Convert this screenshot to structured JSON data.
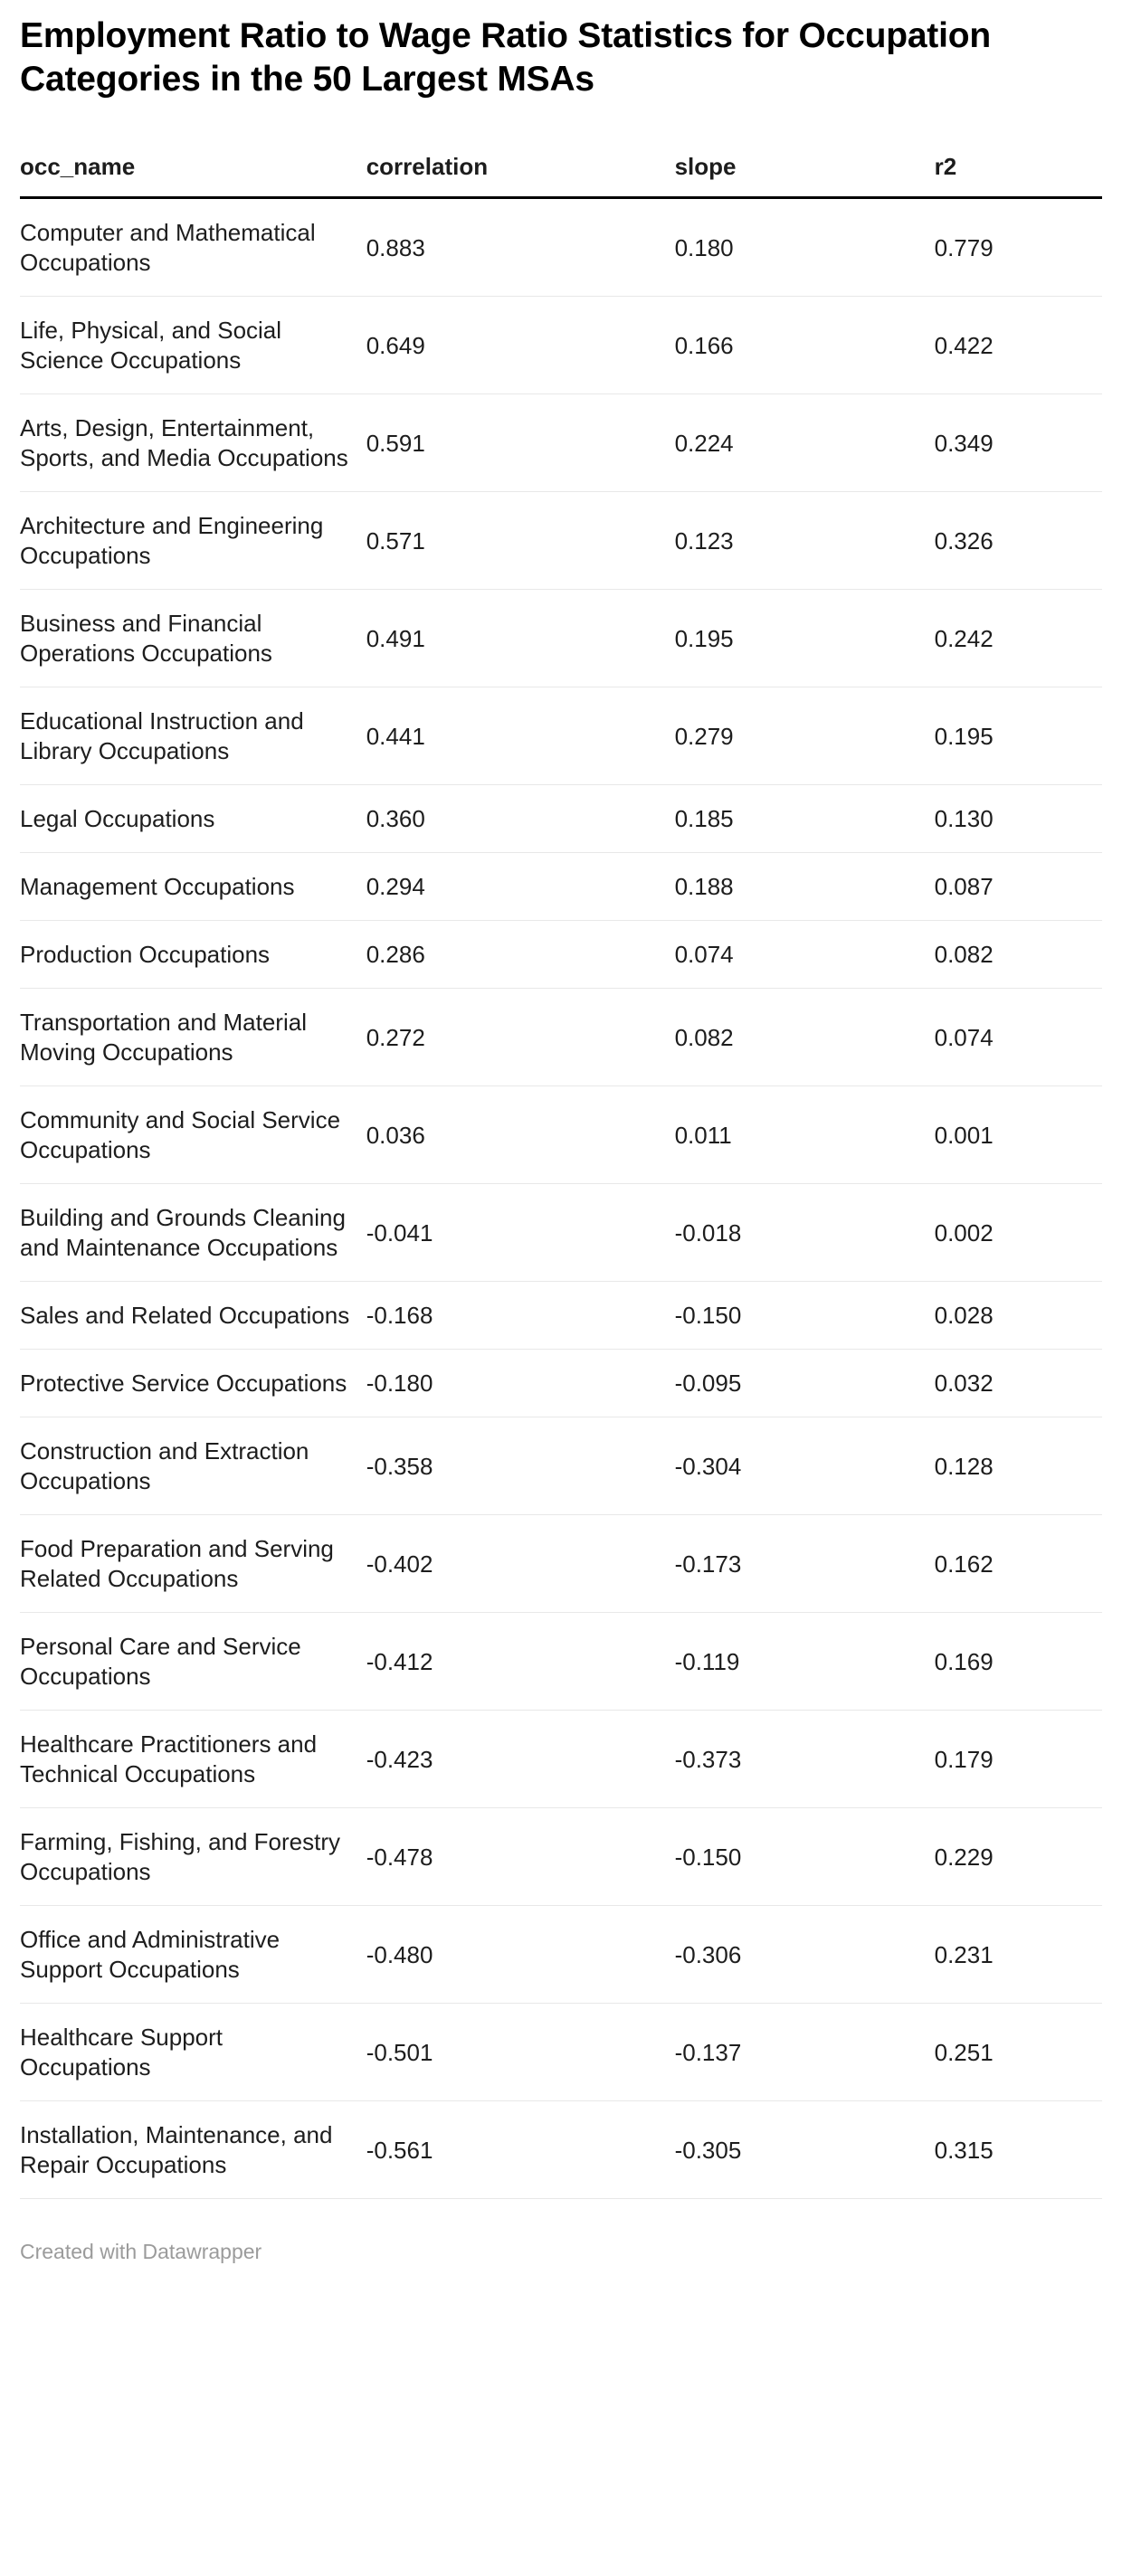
{
  "chart_data": {
    "type": "table",
    "title": "Employment Ratio to Wage Ratio Statistics for Occupation Categories in the 50 Largest MSAs",
    "columns": [
      "occ_name",
      "correlation",
      "slope",
      "r2"
    ],
    "rows": [
      {
        "occ_name": "Computer and Mathematical Occupations",
        "correlation": "0.883",
        "slope": "0.180",
        "r2": "0.779"
      },
      {
        "occ_name": "Life, Physical, and Social Science Occupations",
        "correlation": "0.649",
        "slope": "0.166",
        "r2": "0.422"
      },
      {
        "occ_name": "Arts, Design, Entertainment, Sports, and Media Occupations",
        "correlation": "0.591",
        "slope": "0.224",
        "r2": "0.349"
      },
      {
        "occ_name": "Architecture and Engineering Occupations",
        "correlation": "0.571",
        "slope": "0.123",
        "r2": "0.326"
      },
      {
        "occ_name": "Business and Financial Operations Occupations",
        "correlation": "0.491",
        "slope": "0.195",
        "r2": "0.242"
      },
      {
        "occ_name": "Educational Instruction and Library Occupations",
        "correlation": "0.441",
        "slope": "0.279",
        "r2": "0.195"
      },
      {
        "occ_name": "Legal Occupations",
        "correlation": "0.360",
        "slope": "0.185",
        "r2": "0.130"
      },
      {
        "occ_name": "Management Occupations",
        "correlation": "0.294",
        "slope": "0.188",
        "r2": "0.087"
      },
      {
        "occ_name": "Production Occupations",
        "correlation": "0.286",
        "slope": "0.074",
        "r2": "0.082"
      },
      {
        "occ_name": "Transportation and Material Moving Occupations",
        "correlation": "0.272",
        "slope": "0.082",
        "r2": "0.074"
      },
      {
        "occ_name": "Community and Social Service Occupations",
        "correlation": "0.036",
        "slope": "0.011",
        "r2": "0.001"
      },
      {
        "occ_name": "Building and Grounds Cleaning and Maintenance Occupations",
        "correlation": "-0.041",
        "slope": "-0.018",
        "r2": "0.002"
      },
      {
        "occ_name": "Sales and Related Occupations",
        "correlation": "-0.168",
        "slope": "-0.150",
        "r2": "0.028"
      },
      {
        "occ_name": "Protective Service Occupations",
        "correlation": "-0.180",
        "slope": "-0.095",
        "r2": "0.032"
      },
      {
        "occ_name": "Construction and Extraction Occupations",
        "correlation": "-0.358",
        "slope": "-0.304",
        "r2": "0.128"
      },
      {
        "occ_name": "Food Preparation and Serving Related Occupations",
        "correlation": "-0.402",
        "slope": "-0.173",
        "r2": "0.162"
      },
      {
        "occ_name": "Personal Care and Service Occupations",
        "correlation": "-0.412",
        "slope": "-0.119",
        "r2": "0.169"
      },
      {
        "occ_name": "Healthcare Practitioners and Technical Occupations",
        "correlation": "-0.423",
        "slope": "-0.373",
        "r2": "0.179"
      },
      {
        "occ_name": "Farming, Fishing, and Forestry Occupations",
        "correlation": "-0.478",
        "slope": "-0.150",
        "r2": "0.229"
      },
      {
        "occ_name": "Office and Administrative Support Occupations",
        "correlation": "-0.480",
        "slope": "-0.306",
        "r2": "0.231"
      },
      {
        "occ_name": "Healthcare Support Occupations",
        "correlation": "-0.501",
        "slope": "-0.137",
        "r2": "0.251"
      },
      {
        "occ_name": "Installation, Maintenance, and Repair Occupations",
        "correlation": "-0.561",
        "slope": "-0.305",
        "r2": "0.315"
      }
    ]
  },
  "footer": {
    "attribution": "Created with Datawrapper"
  },
  "colors": {
    "text": "#1d1d1d",
    "separator": "#e8e8e8",
    "header_border": "#000000",
    "footer_text": "#9b9b9b",
    "background": "#ffffff"
  }
}
